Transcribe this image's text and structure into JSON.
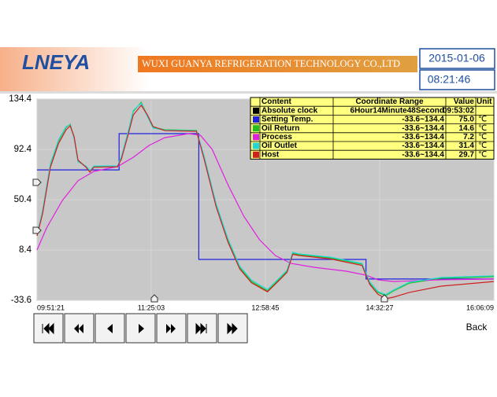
{
  "header": {
    "logo": "LNEYA",
    "company": "WUXI GUANYA REFRIGERATION TECHNOLOGY CO.,LTD",
    "date": "2015-01-06",
    "time": "08:21:46"
  },
  "chart_data": {
    "type": "line",
    "xlim": [
      0,
      374.5
    ],
    "ylim": [
      -33.6,
      134.4
    ],
    "xticks": [
      {
        "value": 0,
        "label": "09:51:21"
      },
      {
        "value": 93.6,
        "label": "11:25:03"
      },
      {
        "value": 187.2,
        "label": "12:58:45"
      },
      {
        "value": 280.9,
        "label": "14:32:27"
      },
      {
        "value": 374.5,
        "label": "16:06:09"
      }
    ],
    "yticks": [
      134.4,
      92.4,
      50.4,
      8.4,
      -33.6
    ],
    "grid": true,
    "table": {
      "header": [
        "Content",
        "Coordinate Range",
        "Value",
        "Unit"
      ],
      "clock": {
        "name": "Absolute clock",
        "color": "#000000",
        "range": "6Hour14Minute48Second",
        "value": "09:53:02"
      }
    },
    "series": [
      {
        "name": "Setting Temp.",
        "color": "#2020e0",
        "range": "-33.6~134.4",
        "current": "75.0",
        "unit": "℃",
        "x": [
          0,
          67.3,
          67.3,
          132.6,
          132.6,
          269.7,
          269.7,
          374.5
        ],
        "values": [
          75.3,
          75.3,
          105.5,
          105.5,
          0.5,
          0.5,
          -15.8,
          -15.8
        ]
      },
      {
        "name": "Oil Return",
        "color": "#20c020",
        "range": "-33.6~134.4",
        "current": "14.6",
        "unit": "℃",
        "x": [
          0,
          4.5,
          11.0,
          17.5,
          23.9,
          27.2,
          30.4,
          33.6,
          40.1,
          43.3,
          46.6,
          66.0,
          69.2,
          74.4,
          78.9,
          85.4,
          90.6,
          95.1,
          104.8,
          130.7,
          137.1,
          146.8,
          156.5,
          166.2,
          175.9,
          188.9,
          198.6,
          205.0,
          209.6,
          214.7,
          240.6,
          266.5,
          272.9,
          279.4,
          285.8,
          292.3,
          305.3,
          331.2,
          374.5
        ],
        "values": [
          20.2,
          39.9,
          79.3,
          99.0,
          110.8,
          113.4,
          102.2,
          82.6,
          78.0,
          74.0,
          78.0,
          78.0,
          85.8,
          105.5,
          123.9,
          131.8,
          120.0,
          110.8,
          108.8,
          108.2,
          85.8,
          46.5,
          16.9,
          -6.1,
          -17.9,
          -25.7,
          -15.9,
          -9.3,
          5.8,
          4.5,
          1.8,
          -3.4,
          -19.2,
          -27.0,
          -29.7,
          -25.7,
          -19.2,
          -15.2,
          -13.9
        ]
      },
      {
        "name": "Process",
        "color": "#e020e0",
        "range": "-33.6~134.4",
        "current": "7.2",
        "unit": "℃",
        "x": [
          0,
          7.8,
          20.7,
          33.6,
          46.6,
          66.0,
          78.9,
          91.8,
          104.8,
          124.2,
          133.9,
          143.6,
          156.5,
          169.5,
          182.4,
          195.3,
          208.3,
          227.7,
          253.6,
          269.7,
          279.4,
          292.3,
          331.2,
          374.5
        ],
        "values": [
          8.4,
          26.8,
          49.7,
          66.2,
          74.0,
          78.0,
          85.8,
          95.7,
          102.2,
          105.5,
          104.2,
          92.4,
          62.9,
          36.6,
          16.9,
          3.8,
          -2.8,
          -6.1,
          -9.3,
          -12.6,
          -16.5,
          -17.9,
          -16.5,
          -15.9
        ]
      },
      {
        "name": "Oil Outlet",
        "color": "#20d8d8",
        "range": "-33.6~134.4",
        "current": "31.4",
        "unit": "℃",
        "x": [
          0,
          4.5,
          11.0,
          17.5,
          23.9,
          27.2,
          30.4,
          33.6,
          40.1,
          43.3,
          46.6,
          66.0,
          69.2,
          74.4,
          78.9,
          85.4,
          90.6,
          95.1,
          104.8,
          130.7,
          137.1,
          146.8,
          156.5,
          166.2,
          175.9,
          188.9,
          198.6,
          205.0,
          209.6,
          214.7,
          240.6,
          266.5,
          272.9,
          279.4,
          285.8,
          292.3,
          305.3,
          331.2,
          374.5
        ],
        "values": [
          21.0,
          41.0,
          80.5,
          100.0,
          111.5,
          112.8,
          101.5,
          82.0,
          78.5,
          74.8,
          78.5,
          78.6,
          86.5,
          106.2,
          124.8,
          130.9,
          119.5,
          110.2,
          108.5,
          108.0,
          86.5,
          47.2,
          17.8,
          -5.2,
          -16.8,
          -24.6,
          -15.0,
          -8.4,
          6.5,
          5.2,
          2.4,
          -2.8,
          -18.4,
          -26.2,
          -28.9,
          -25.0,
          -18.5,
          -14.6,
          -13.2
        ]
      },
      {
        "name": "Host",
        "color": "#d02020",
        "range": "-33.6~134.4",
        "current": "29.7",
        "unit": "℃",
        "x": [
          0,
          4.5,
          11.0,
          17.5,
          23.9,
          27.2,
          30.4,
          33.6,
          40.1,
          43.3,
          46.6,
          66.0,
          69.2,
          74.4,
          78.9,
          85.4,
          90.6,
          95.1,
          104.8,
          130.7,
          137.1,
          146.8,
          156.5,
          166.2,
          175.9,
          188.9,
          198.6,
          205.0,
          209.6,
          214.7,
          240.6,
          266.5,
          272.9,
          279.4,
          285.8,
          292.3,
          305.3,
          331.2,
          374.5
        ],
        "values": [
          20.2,
          38.5,
          77.5,
          97.0,
          108.8,
          112.0,
          103.0,
          83.5,
          77.5,
          73.5,
          77.5,
          77.8,
          84.5,
          103.5,
          121.0,
          129.2,
          121.0,
          111.5,
          108.0,
          107.5,
          84.0,
          44.5,
          15.0,
          -7.5,
          -19.0,
          -26.5,
          -16.8,
          -10.2,
          4.8,
          3.8,
          0.9,
          -4.5,
          -20.5,
          -28.4,
          -32.3,
          -31.0,
          -27.0,
          -21.8,
          -17.9
        ]
      }
    ]
  },
  "controls": {
    "back": "Back"
  }
}
